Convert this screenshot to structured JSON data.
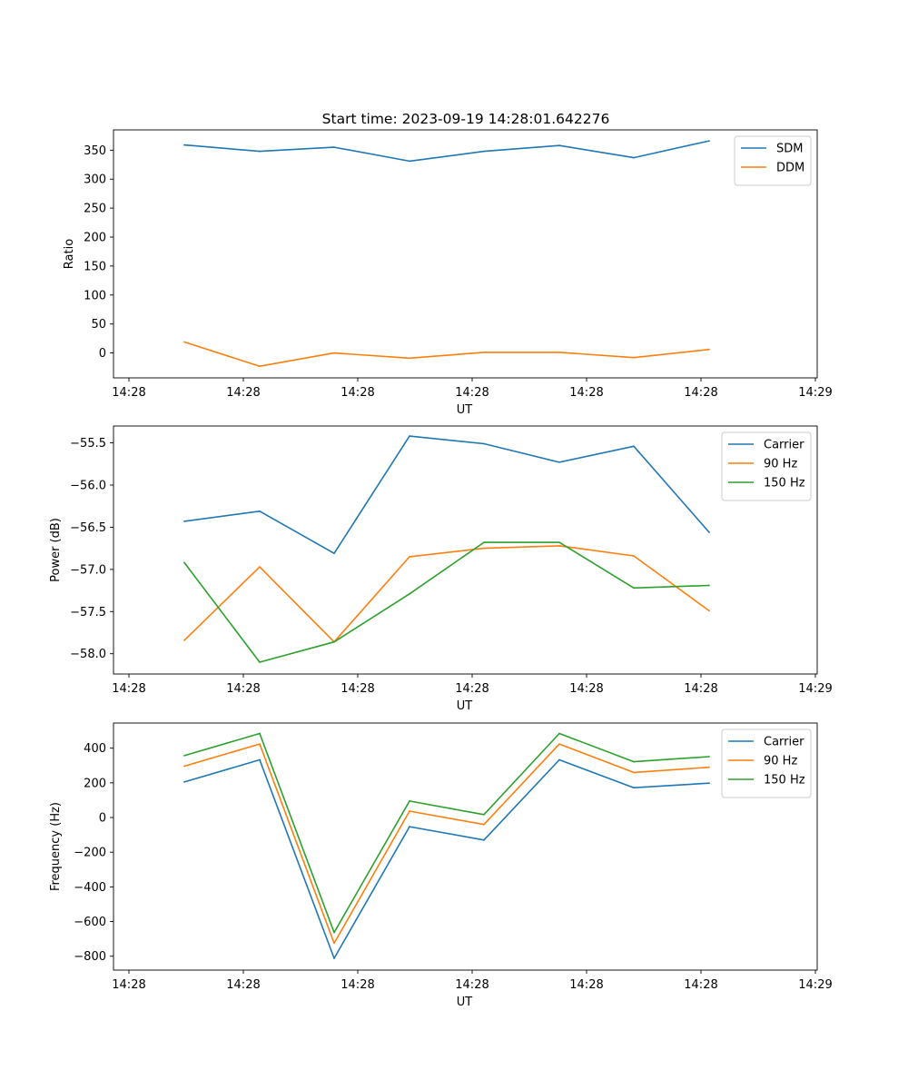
{
  "figure_title": "Start time: 2023-09-19 14:28:01.642276",
  "colors": {
    "c0": "#1f77b4",
    "c1": "#ff7f0e",
    "c2": "#2ca02c"
  },
  "chart_data": [
    {
      "type": "line",
      "title": "Start time: 2023-09-19 14:28:01.642276",
      "xlabel": "UT",
      "ylabel": "Ratio",
      "x_tick_labels": [
        "14:28",
        "14:28",
        "14:28",
        "14:28",
        "14:28",
        "14:28",
        "14:28"
      ],
      "x_last_tick_label": "14:29",
      "ylim": [
        -43,
        385
      ],
      "yticks": [
        0,
        50,
        100,
        150,
        200,
        250,
        300,
        350
      ],
      "ytick_labels": [
        "0",
        "50",
        "100",
        "150",
        "200",
        "250",
        "300",
        "350"
      ],
      "legend_position": "top-right",
      "series": [
        {
          "name": "SDM",
          "values": [
            359,
            348,
            355,
            331,
            348,
            358,
            337,
            366
          ]
        },
        {
          "name": "DDM",
          "values": [
            19,
            -23,
            0,
            -9,
            1,
            1,
            -8,
            6
          ]
        }
      ]
    },
    {
      "type": "line",
      "title": "",
      "xlabel": "UT",
      "ylabel": "Power (dB)",
      "x_tick_labels": [
        "14:28",
        "14:28",
        "14:28",
        "14:28",
        "14:28",
        "14:28",
        "14:28"
      ],
      "x_last_tick_label": "14:29",
      "ylim": [
        -58.24,
        -55.3
      ],
      "yticks": [
        -58.0,
        -57.5,
        -57.0,
        -56.5,
        -56.0,
        -55.5
      ],
      "ytick_labels": [
        "−58.0",
        "−57.5",
        "−57.0",
        "−56.5",
        "−56.0",
        "−55.5"
      ],
      "legend_position": "top-right",
      "series": [
        {
          "name": "Carrier",
          "values": [
            -56.43,
            -56.31,
            -56.81,
            -55.42,
            -55.51,
            -55.73,
            -55.54,
            -56.56
          ]
        },
        {
          "name": "90 Hz",
          "values": [
            -57.84,
            -56.97,
            -57.86,
            -56.85,
            -56.75,
            -56.72,
            -56.84,
            -57.49
          ]
        },
        {
          "name": "150 Hz",
          "values": [
            -56.92,
            -58.1,
            -57.86,
            -57.29,
            -56.68,
            -56.68,
            -57.22,
            -57.19
          ]
        }
      ]
    },
    {
      "type": "line",
      "title": "",
      "xlabel": "UT",
      "ylabel": "Frequency (Hz)",
      "x_tick_labels": [
        "14:28",
        "14:28",
        "14:28",
        "14:28",
        "14:28",
        "14:28",
        "14:28"
      ],
      "x_last_tick_label": "14:29",
      "ylim": [
        -880,
        545
      ],
      "yticks": [
        -800,
        -600,
        -400,
        -200,
        0,
        200,
        400
      ],
      "ytick_labels": [
        "−800",
        "−600",
        "−400",
        "−200",
        "0",
        "200",
        "400"
      ],
      "legend_position": "top-right",
      "series": [
        {
          "name": "Carrier",
          "values": [
            205,
            333,
            -812,
            -53,
            -130,
            333,
            172,
            198
          ]
        },
        {
          "name": "90 Hz",
          "values": [
            296,
            424,
            -725,
            37,
            -40,
            424,
            260,
            290
          ]
        },
        {
          "name": "150 Hz",
          "values": [
            357,
            485,
            -663,
            95,
            17,
            485,
            322,
            351
          ]
        }
      ]
    }
  ]
}
